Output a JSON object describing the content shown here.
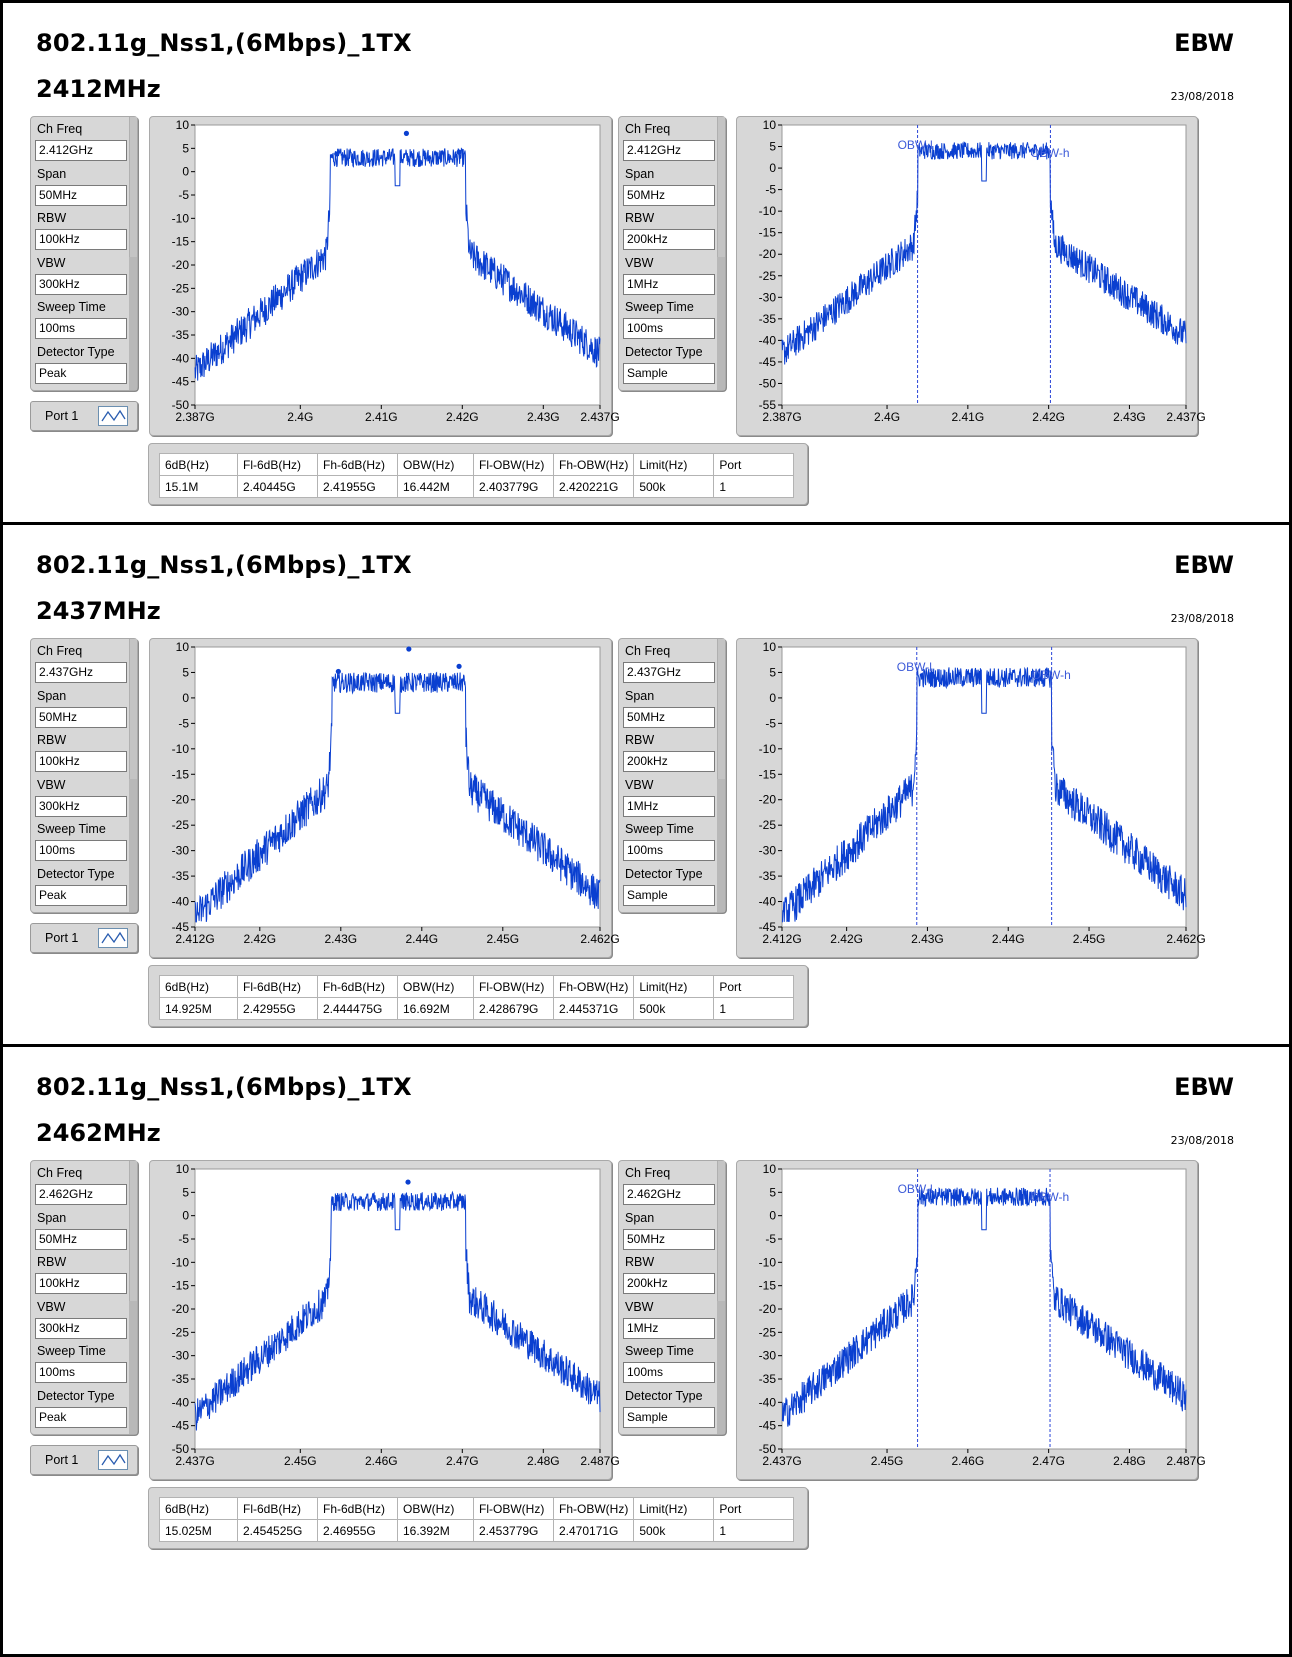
{
  "sections": [
    {
      "title": "802.11g_Nss1,(6Mbps)_1TX",
      "frequency": "2412MHz",
      "mode": "EBW",
      "date": "23/08/2018",
      "left_settings": {
        "labels": [
          "Ch Freq",
          "Span",
          "RBW",
          "VBW",
          "Sweep Time",
          "Detector Type"
        ],
        "values": [
          "2.412GHz",
          "50MHz",
          "100kHz",
          "300kHz",
          "100ms",
          "Peak"
        ]
      },
      "right_settings": {
        "labels": [
          "Ch Freq",
          "Span",
          "RBW",
          "VBW",
          "Sweep Time",
          "Detector Type"
        ],
        "values": [
          "2.412GHz",
          "50MHz",
          "200kHz",
          "1MHz",
          "100ms",
          "Sample"
        ]
      },
      "port_label": "Port 1",
      "table": {
        "headers": [
          "6dB(Hz)",
          "Fl-6dB(Hz)",
          "Fh-6dB(Hz)",
          "OBW(Hz)",
          "Fl-OBW(Hz)",
          "Fh-OBW(Hz)",
          "Limit(Hz)",
          "Port"
        ],
        "values": [
          "15.1M",
          "2.40445G",
          "2.41955G",
          "16.442M",
          "2.403779G",
          "2.420221G",
          "500k",
          "1"
        ]
      },
      "chart_data": [
        {
          "type": "line",
          "series": [
            {
              "values": "spectrum"
            }
          ],
          "x_tick_labels": [
            "2.387G",
            "2.4G",
            "2.41G",
            "2.42G",
            "2.43G",
            "2.437G"
          ],
          "x_ticks": [
            2.387,
            2.4,
            2.41,
            2.42,
            2.43,
            2.437
          ],
          "xlim": [
            2.387,
            2.437
          ],
          "ylim": [
            -50,
            10
          ],
          "y_ticks": [
            10,
            5,
            0,
            -5,
            -10,
            -15,
            -20,
            -25,
            -30,
            -35,
            -40,
            -45,
            -50
          ],
          "markers": [
            [
              2.4045,
              3.8
            ],
            [
              2.4131,
              8.2
            ],
            [
              2.4196,
              4.2
            ]
          ],
          "line_color": "#0a3fd0"
        },
        {
          "type": "line",
          "series": [
            {
              "values": "spectrum"
            }
          ],
          "x_tick_labels": [
            "2.387G",
            "2.4G",
            "2.41G",
            "2.42G",
            "2.43G",
            "2.437G"
          ],
          "x_ticks": [
            2.387,
            2.4,
            2.41,
            2.42,
            2.43,
            2.437
          ],
          "xlim": [
            2.387,
            2.437
          ],
          "ylim": [
            -55,
            10
          ],
          "y_ticks": [
            10,
            5,
            0,
            -5,
            -10,
            -15,
            -20,
            -25,
            -30,
            -35,
            -40,
            -45,
            -50,
            -55
          ],
          "obw_lines": [
            2.403779,
            2.420221
          ],
          "annotations": [
            "OBW-l",
            "OBW-h"
          ],
          "line_color": "#0a3fd0"
        }
      ]
    },
    {
      "title": "802.11g_Nss1,(6Mbps)_1TX",
      "frequency": "2437MHz",
      "mode": "EBW",
      "date": "23/08/2018",
      "left_settings": {
        "labels": [
          "Ch Freq",
          "Span",
          "RBW",
          "VBW",
          "Sweep Time",
          "Detector Type"
        ],
        "values": [
          "2.437GHz",
          "50MHz",
          "100kHz",
          "300kHz",
          "100ms",
          "Peak"
        ]
      },
      "right_settings": {
        "labels": [
          "Ch Freq",
          "Span",
          "RBW",
          "VBW",
          "Sweep Time",
          "Detector Type"
        ],
        "values": [
          "2.437GHz",
          "50MHz",
          "200kHz",
          "1MHz",
          "100ms",
          "Sample"
        ]
      },
      "port_label": "Port 1",
      "table": {
        "headers": [
          "6dB(Hz)",
          "Fl-6dB(Hz)",
          "Fh-6dB(Hz)",
          "OBW(Hz)",
          "Fl-OBW(Hz)",
          "Fh-OBW(Hz)",
          "Limit(Hz)",
          "Port"
        ],
        "values": [
          "14.925M",
          "2.42955G",
          "2.444475G",
          "16.692M",
          "2.428679G",
          "2.445371G",
          "500k",
          "1"
        ]
      },
      "chart_data": [
        {
          "type": "line",
          "series": [
            {
              "values": "spectrum"
            }
          ],
          "x_tick_labels": [
            "2.412G",
            "2.42G",
            "2.43G",
            "2.44G",
            "2.45G",
            "2.462G"
          ],
          "x_ticks": [
            2.412,
            2.42,
            2.43,
            2.44,
            2.45,
            2.462
          ],
          "xlim": [
            2.412,
            2.462
          ],
          "ylim": [
            -45,
            10
          ],
          "y_ticks": [
            10,
            5,
            0,
            -5,
            -10,
            -15,
            -20,
            -25,
            -30,
            -35,
            -40,
            -45
          ],
          "markers": [
            [
              2.4297,
              5.2
            ],
            [
              2.4384,
              9.6
            ],
            [
              2.4446,
              6.2
            ]
          ],
          "line_color": "#0a3fd0"
        },
        {
          "type": "line",
          "series": [
            {
              "values": "spectrum"
            }
          ],
          "x_tick_labels": [
            "2.412G",
            "2.42G",
            "2.43G",
            "2.44G",
            "2.45G",
            "2.462G"
          ],
          "x_ticks": [
            2.412,
            2.42,
            2.43,
            2.44,
            2.45,
            2.462
          ],
          "xlim": [
            2.412,
            2.462
          ],
          "ylim": [
            -45,
            10
          ],
          "y_ticks": [
            10,
            5,
            0,
            -5,
            -10,
            -15,
            -20,
            -25,
            -30,
            -35,
            -40,
            -45
          ],
          "obw_lines": [
            2.428679,
            2.445371
          ],
          "annotations": [
            "OBW-l",
            "OBW-h"
          ],
          "line_color": "#0a3fd0"
        }
      ]
    },
    {
      "title": "802.11g_Nss1,(6Mbps)_1TX",
      "frequency": "2462MHz",
      "mode": "EBW",
      "date": "23/08/2018",
      "left_settings": {
        "labels": [
          "Ch Freq",
          "Span",
          "RBW",
          "VBW",
          "Sweep Time",
          "Detector Type"
        ],
        "values": [
          "2.462GHz",
          "50MHz",
          "100kHz",
          "300kHz",
          "100ms",
          "Peak"
        ]
      },
      "right_settings": {
        "labels": [
          "Ch Freq",
          "Span",
          "RBW",
          "VBW",
          "Sweep Time",
          "Detector Type"
        ],
        "values": [
          "2.462GHz",
          "50MHz",
          "200kHz",
          "1MHz",
          "100ms",
          "Sample"
        ]
      },
      "port_label": "Port 1",
      "table": {
        "headers": [
          "6dB(Hz)",
          "Fl-6dB(Hz)",
          "Fh-6dB(Hz)",
          "OBW(Hz)",
          "Fl-OBW(Hz)",
          "Fh-OBW(Hz)",
          "Limit(Hz)",
          "Port"
        ],
        "values": [
          "15.025M",
          "2.454525G",
          "2.46955G",
          "16.392M",
          "2.453779G",
          "2.470171G",
          "500k",
          "1"
        ]
      },
      "chart_data": [
        {
          "type": "line",
          "series": [
            {
              "values": "spectrum"
            }
          ],
          "x_tick_labels": [
            "2.437G",
            "2.45G",
            "2.46G",
            "2.47G",
            "2.48G",
            "2.487G"
          ],
          "x_ticks": [
            2.437,
            2.45,
            2.46,
            2.47,
            2.48,
            2.487
          ],
          "xlim": [
            2.437,
            2.487
          ],
          "ylim": [
            -50,
            10
          ],
          "y_ticks": [
            10,
            5,
            0,
            -5,
            -10,
            -15,
            -20,
            -25,
            -30,
            -35,
            -40,
            -45,
            -50
          ],
          "markers": [
            [
              2.4546,
              3.6
            ],
            [
              2.4633,
              7.2
            ],
            [
              2.4696,
              3.6
            ]
          ],
          "line_color": "#0a3fd0"
        },
        {
          "type": "line",
          "series": [
            {
              "values": "spectrum"
            }
          ],
          "x_tick_labels": [
            "2.437G",
            "2.45G",
            "2.46G",
            "2.47G",
            "2.48G",
            "2.487G"
          ],
          "x_ticks": [
            2.437,
            2.45,
            2.46,
            2.47,
            2.48,
            2.487
          ],
          "xlim": [
            2.437,
            2.487
          ],
          "ylim": [
            -50,
            10
          ],
          "y_ticks": [
            10,
            5,
            0,
            -5,
            -10,
            -15,
            -20,
            -25,
            -30,
            -35,
            -40,
            -45,
            -50
          ],
          "obw_lines": [
            2.453779,
            2.470171
          ],
          "annotations": [
            "OBW-l",
            "OBW-h"
          ],
          "line_color": "#0a3fd0"
        }
      ]
    }
  ]
}
